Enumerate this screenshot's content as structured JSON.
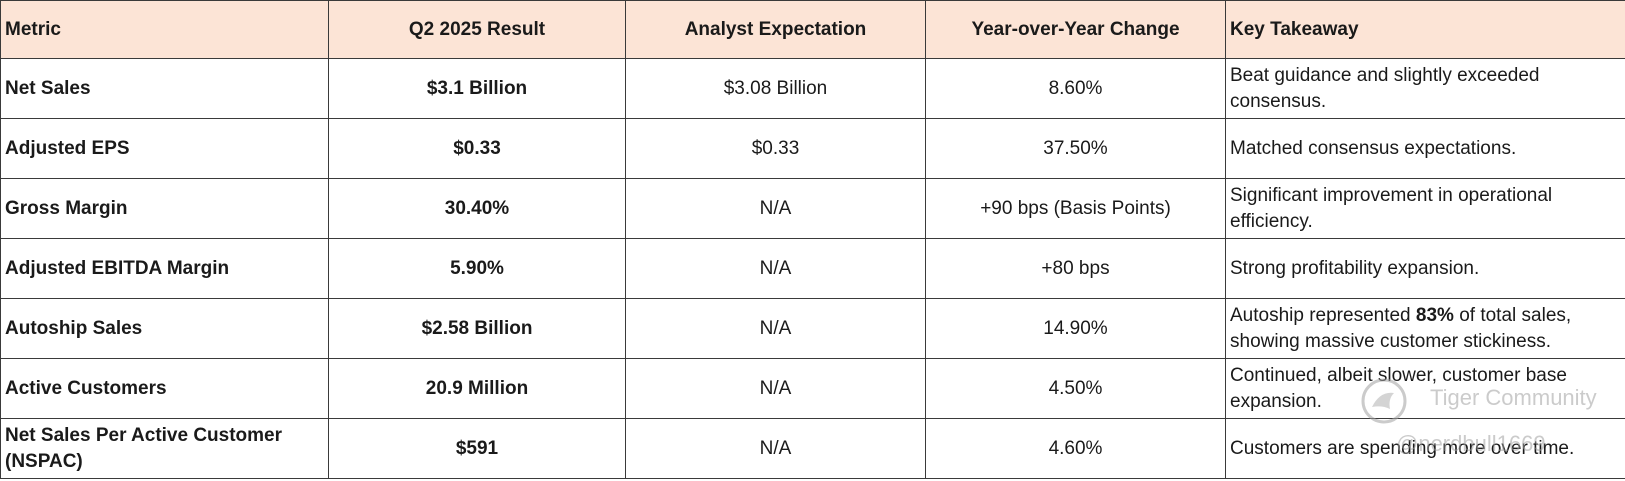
{
  "columns": {
    "metric": "Metric",
    "result": "Q2 2025 Result",
    "expectation": "Analyst Expectation",
    "yoy": "Year-over-Year Change",
    "takeaway": "Key Takeaway"
  },
  "rows": [
    {
      "metric": "Net Sales",
      "result": "$3.1 Billion",
      "expectation": "$3.08 Billion",
      "yoy": "8.60%",
      "takeaway": "Beat guidance and slightly exceeded consensus."
    },
    {
      "metric": "Adjusted EPS",
      "result": "$0.33",
      "expectation": "$0.33",
      "yoy": "37.50%",
      "takeaway": "Matched consensus expectations."
    },
    {
      "metric": "Gross Margin",
      "result": "30.40%",
      "expectation": "N/A",
      "yoy": "+90 bps (Basis Points)",
      "takeaway": "Significant improvement in operational efficiency."
    },
    {
      "metric": "Adjusted EBITDA Margin",
      "result": "5.90%",
      "expectation": "N/A",
      "yoy": "+80 bps",
      "takeaway": "Strong profitability expansion."
    },
    {
      "metric": "Autoship Sales",
      "result": "$2.58 Billion",
      "expectation": "N/A",
      "yoy": "14.90%",
      "takeaway_pre": "Autoship represented ",
      "takeaway_bold": "83%",
      "takeaway_post": " of total sales, showing massive customer stickiness."
    },
    {
      "metric": "Active Customers",
      "result": "20.9 Million",
      "expectation": "N/A",
      "yoy": "4.50%",
      "takeaway": "Continued, albeit slower, customer base expansion."
    },
    {
      "metric": "Net Sales Per Active Customer (NSPAC)",
      "result": "$591",
      "expectation": "N/A",
      "yoy": "4.60%",
      "takeaway": "Customers are spending more over time."
    }
  ],
  "watermark": {
    "name": "Tiger Community",
    "user": "@nerdbull1669",
    "logo_icon": "tiger-logo-icon"
  },
  "colors": {
    "header_bg": "#fce4d6",
    "border": "#3a3a3a"
  }
}
